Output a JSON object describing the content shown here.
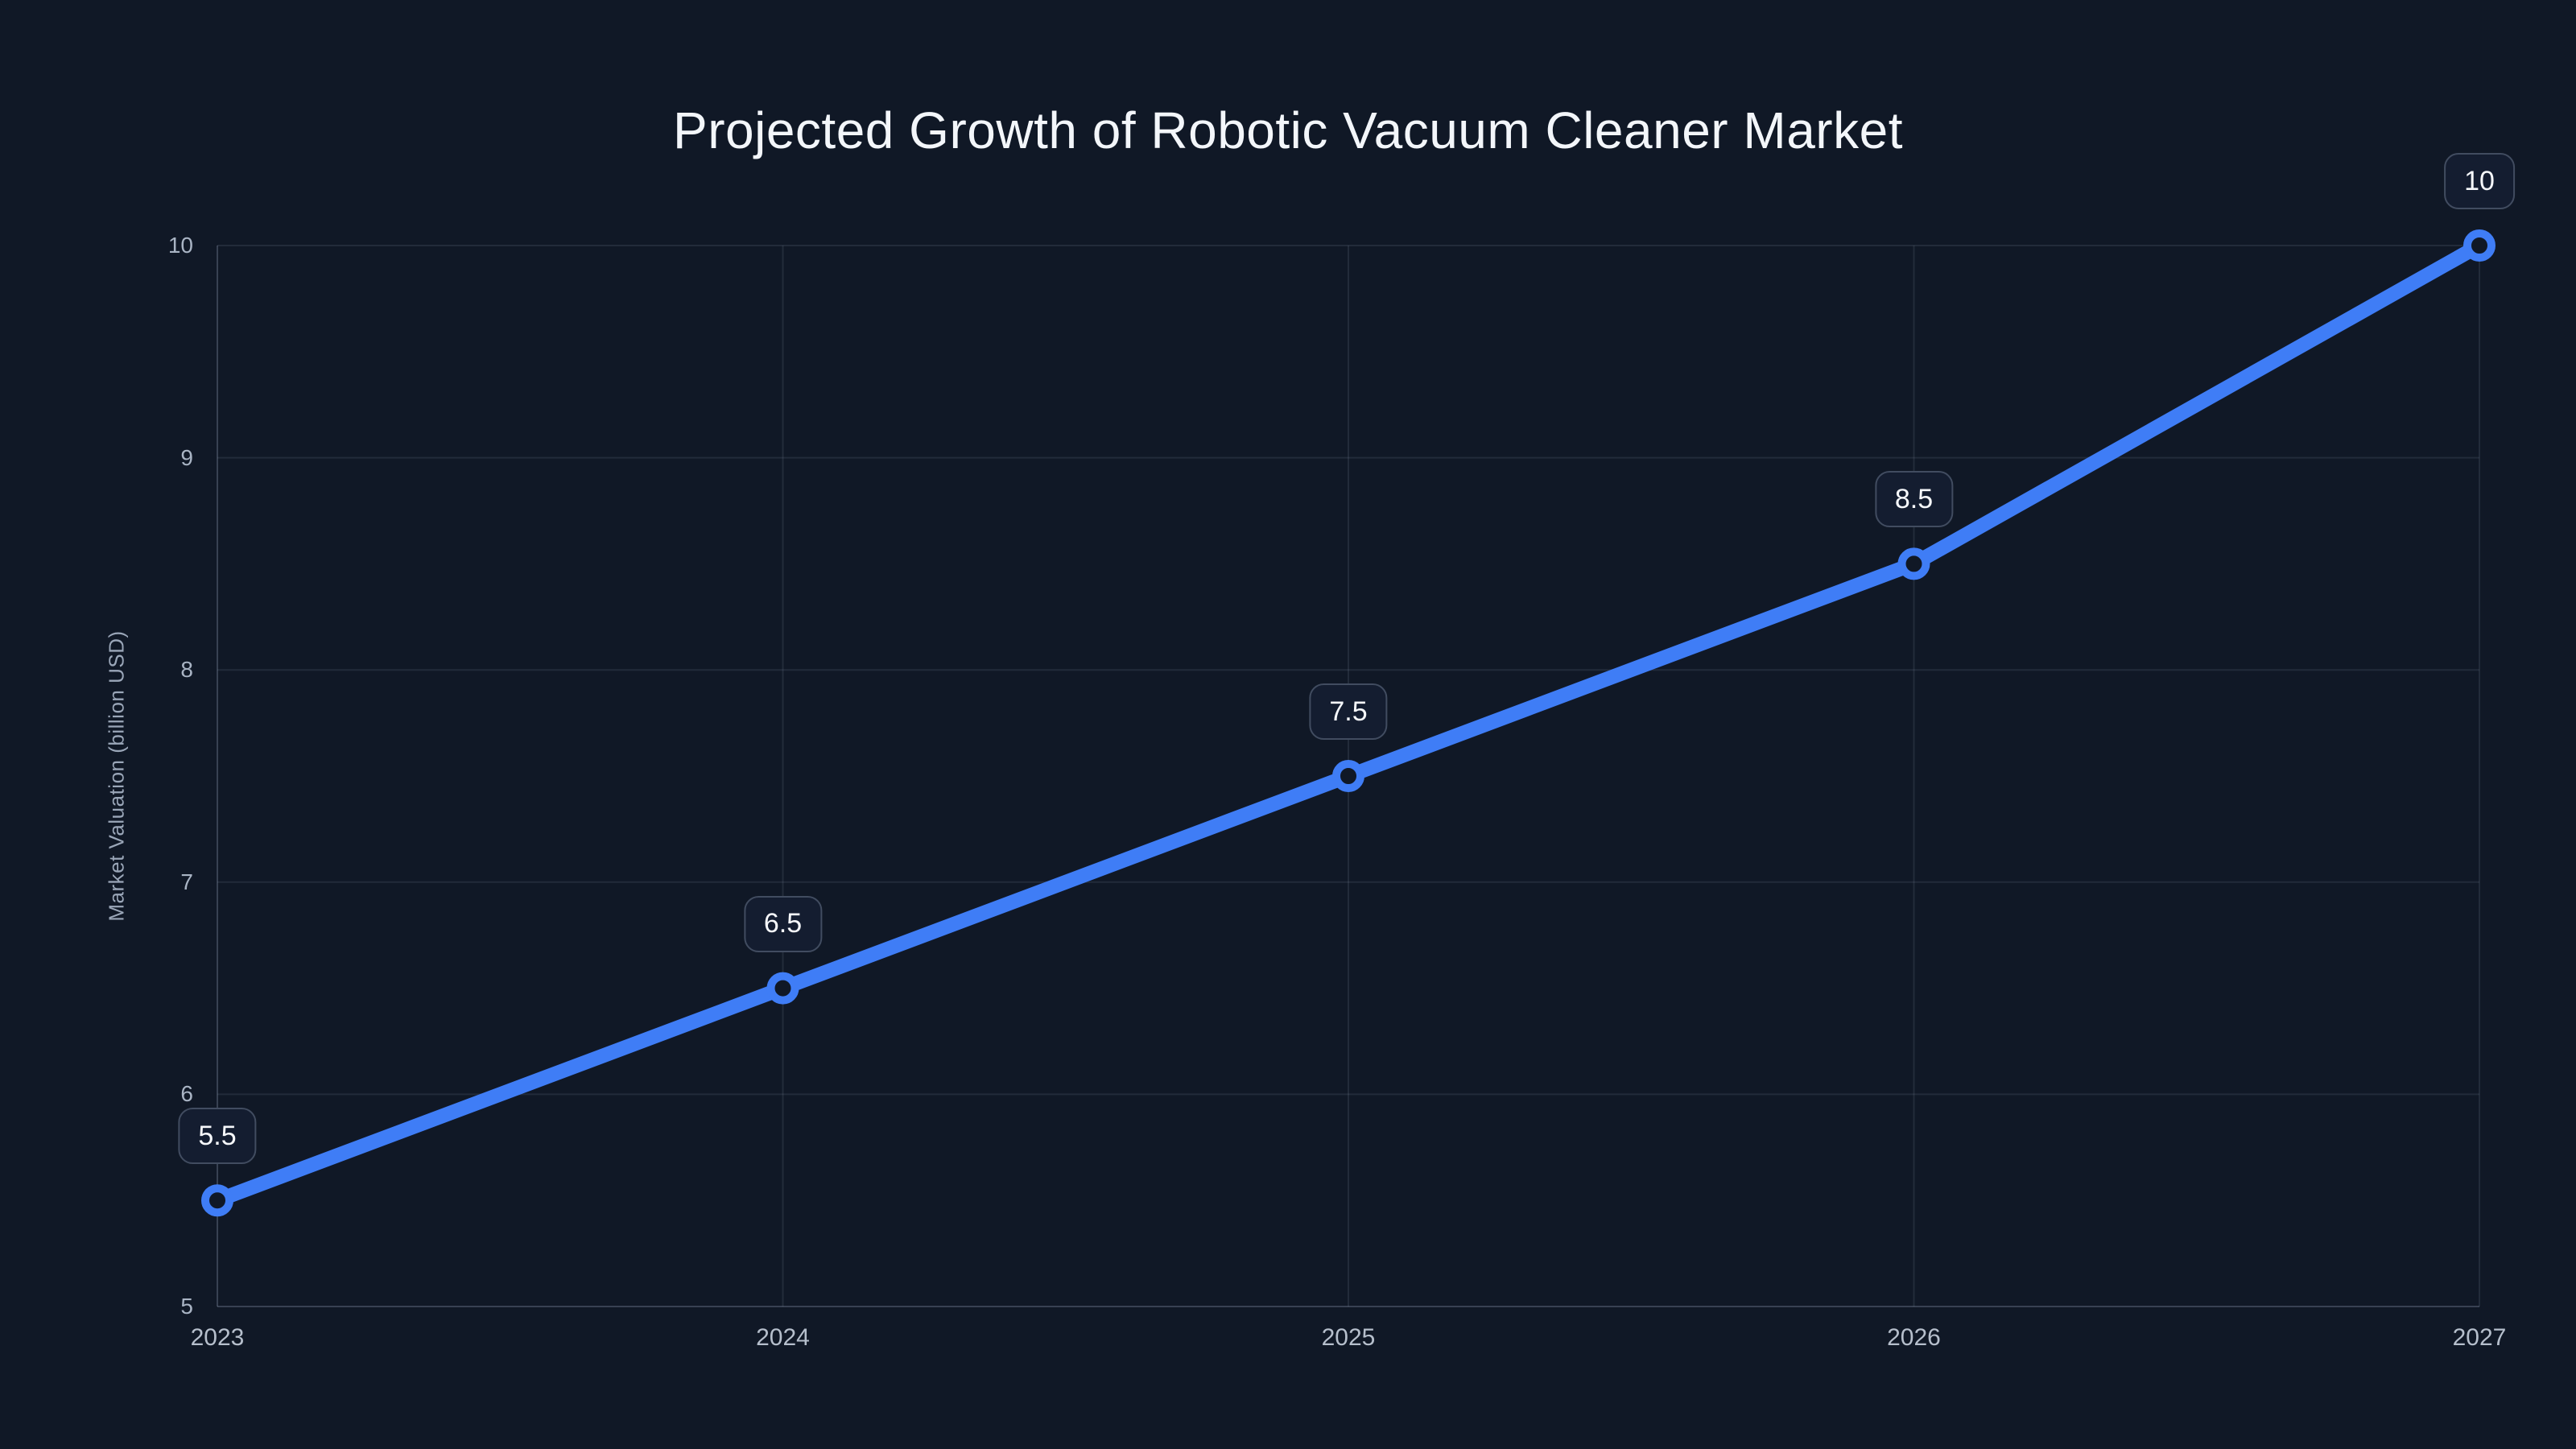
{
  "page": {
    "background_color": "#101826"
  },
  "chart_data": {
    "type": "line",
    "title": "Projected Growth of Robotic Vacuum Cleaner Market",
    "xlabel": "",
    "ylabel": "Market Valuation (billion USD)",
    "categories": [
      "2023",
      "2024",
      "2025",
      "2026",
      "2027"
    ],
    "series": [
      {
        "name": "Market Valuation",
        "values": [
          5.5,
          6.5,
          7.5,
          8.5,
          10
        ]
      }
    ],
    "point_labels": [
      "5.5",
      "6.5",
      "7.5",
      "8.5",
      "10"
    ],
    "ylim": [
      5,
      10
    ],
    "yticks": [
      5,
      6,
      7,
      8,
      9,
      10
    ],
    "ytick_labels": [
      "5",
      "6",
      "7",
      "8",
      "9",
      "10"
    ],
    "grid": true,
    "legend": false,
    "colors": {
      "line": "#3f7df6",
      "marker_fill": "#101826",
      "label_box_fill": "#141d30",
      "label_box_border": "#414c60",
      "grid": "rgba(148,163,184,0.14)",
      "axis": "rgba(148,163,184,0.30)",
      "title_text": "#f3f6fa",
      "tick_text": "#a9b4c4"
    }
  }
}
